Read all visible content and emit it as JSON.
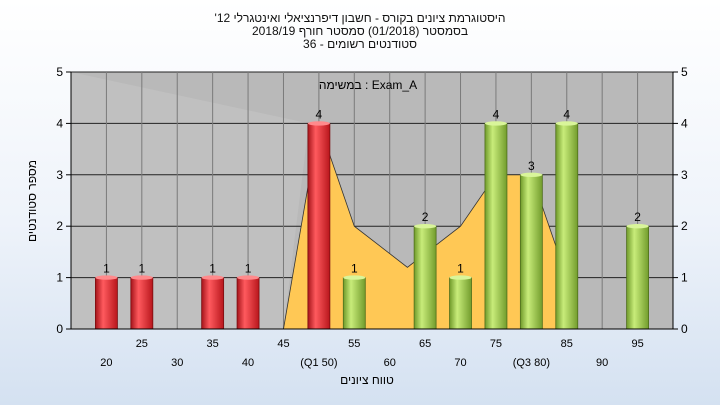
{
  "header": {
    "title_line1": "היסטוגרמת ציונים בקורס - חשבון דיפרנציאלי ואינטגרלי 12'",
    "title_line2": "בסמסטר  (01/2018)  סמסטר חורף 2018/19",
    "title_line3": "סטודנטים רשומים - 36"
  },
  "chart_data": {
    "type": "bar",
    "title": "היסטוגרמת ציונים בקורס - חשבון דיפרנציאלי ואינטגרלי 12'",
    "annotation": "במשימה : Exam_A",
    "xlabel": "טווח ציונים",
    "ylabel": "מספר סטודנטים",
    "ylim": [
      0,
      5
    ],
    "yticks": [
      0,
      1,
      2,
      3,
      4,
      5
    ],
    "grid": true,
    "categories": [
      20,
      25,
      30,
      35,
      40,
      45,
      50,
      55,
      60,
      65,
      70,
      75,
      80,
      85,
      90,
      95
    ],
    "x_tick_labels": [
      "20",
      "25",
      "30",
      "35",
      "40",
      "45",
      "(Q1 50)",
      "55",
      "60",
      "65",
      "70",
      "75",
      "(Q3 80)",
      "85",
      "90",
      "95"
    ],
    "values": [
      1,
      1,
      0,
      1,
      1,
      0,
      4,
      1,
      0,
      2,
      1,
      4,
      3,
      4,
      0,
      2
    ],
    "bar_colors": [
      "#e8343a",
      "#e8343a",
      "#e8343a",
      "#e8343a",
      "#e8343a",
      "#e8343a",
      "#e8343a",
      "#9ed04a",
      "#9ed04a",
      "#9ed04a",
      "#9ed04a",
      "#9ed04a",
      "#9ed04a",
      "#9ed04a",
      "#9ed04a",
      "#9ed04a"
    ],
    "distribution_area": {
      "color": "#ffc855",
      "points": [
        [
          45,
          0
        ],
        [
          50,
          4
        ],
        [
          55,
          2
        ],
        [
          62.5,
          1.2
        ],
        [
          70,
          2
        ],
        [
          75,
          3
        ],
        [
          80,
          3
        ],
        [
          85,
          1
        ],
        [
          85,
          0
        ]
      ]
    },
    "plot_background": "#b9b9b9"
  }
}
